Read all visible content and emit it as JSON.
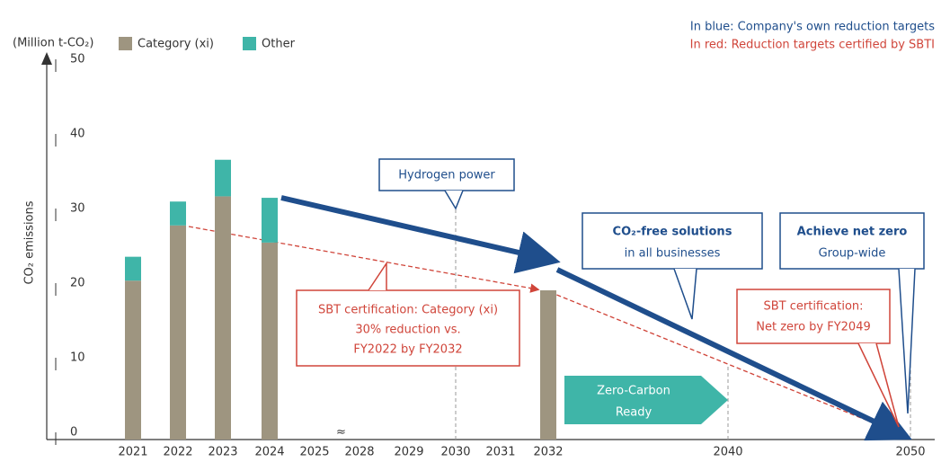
{
  "chart_data": {
    "type": "bar",
    "stacked": true,
    "y_unit": "(Million t-CO₂)",
    "y_label": "CO₂ emissions",
    "categories": [
      "2021",
      "2022",
      "2023",
      "2024",
      "2025",
      "2028",
      "2029",
      "2030",
      "2031",
      "2032",
      "2040",
      "2050"
    ],
    "series": [
      {
        "name": "Category (xi)",
        "color": "#9e9580",
        "values": [
          21.3,
          28.7,
          32.6,
          26.4,
          null,
          null,
          null,
          null,
          null,
          20,
          null,
          null
        ]
      },
      {
        "name": "Other",
        "color": "#3fb5a8",
        "values": [
          3.2,
          3.2,
          4.9,
          6,
          null,
          null,
          null,
          null,
          null,
          null,
          null,
          null
        ]
      }
    ],
    "ylim": [
      0,
      50
    ],
    "yticks": [
      0,
      10,
      20,
      30,
      40,
      50
    ],
    "notes": {
      "blue": "In blue: Company's own reduction targets",
      "red": "In red:  Reduction targets certified by SBTI"
    },
    "annotations": {
      "hydrogen": "Hydrogen power",
      "co2free": [
        "CO₂-free solutions",
        "in all businesses"
      ],
      "netzero": [
        "Achieve net zero",
        "Group-wide"
      ],
      "sbt_xi": [
        "SBT certification: Category (xi)",
        "30% reduction vs.",
        "FY2022 by FY2032"
      ],
      "sbt_nz": [
        "SBT certification:",
        "Net zero by FY2049"
      ],
      "zero_carbon": [
        "Zero-Carbon",
        "Ready"
      ]
    }
  }
}
